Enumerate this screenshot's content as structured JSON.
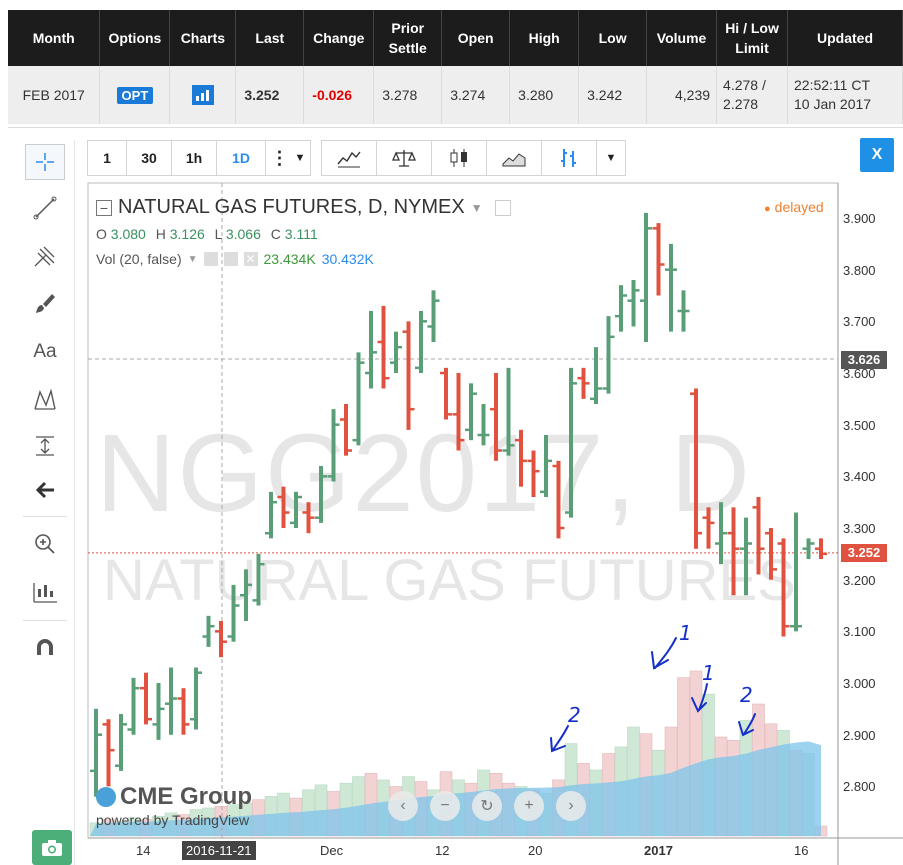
{
  "quote": {
    "headers": [
      "Month",
      "Options",
      "Charts",
      "Last",
      "Change",
      "Prior Settle",
      "Open",
      "High",
      "Low",
      "Volume",
      "Hi / Low Limit",
      "Updated"
    ],
    "month": "FEB 2017",
    "options_label": "OPT",
    "last": "3.252",
    "change": "-0.026",
    "prior_settle": "3.278",
    "open": "3.274",
    "high": "3.280",
    "low": "3.242",
    "volume": "4,239",
    "limit_hi": "4.278 /",
    "limit_lo": "2.278",
    "updated_time": "22:52:11 CT",
    "updated_date": "10 Jan 2017"
  },
  "toolbar": {
    "intervals": [
      "1",
      "30",
      "1h",
      "1D"
    ],
    "selected_interval": "1D",
    "close_label": "X"
  },
  "chart": {
    "title": "NATURAL GAS FUTURES, D, NYMEX",
    "ohlc": {
      "o_label": "O",
      "o": "3.080",
      "h_label": "H",
      "h": "3.126",
      "l_label": "L",
      "l": "3.066",
      "c_label": "C",
      "c": "3.111"
    },
    "vol_label": "Vol (20, false)",
    "vol_a": "23.434K",
    "vol_b": "30.432K",
    "delayed": "delayed",
    "watermark_symbol": "NGG2017, D",
    "watermark_name": "NATURAL GAS FUTURES",
    "brand": "CME Group",
    "powered_by": "powered by TradingView",
    "crosshair_price": "3.626",
    "last_price": "3.252",
    "colors": {
      "up": "#5a9e78",
      "down": "#e0523f",
      "vol_up": "#cfe8d6",
      "vol_down": "#f2d2d2",
      "vol_ma": "#7ec4ea",
      "accent": "#2a8cf0"
    },
    "price_ticks": [
      "3.900",
      "3.800",
      "3.700",
      "3.600",
      "3.500",
      "3.400",
      "3.300",
      "3.200",
      "3.100",
      "3.000",
      "2.900",
      "2.800"
    ],
    "time_ticks": [
      "14",
      "2016-11-21",
      "Dec",
      "12",
      "20",
      "2017",
      "16"
    ],
    "annotations": [
      "1",
      "1",
      "2",
      "2"
    ]
  },
  "chart_data": {
    "type": "bar",
    "title": "NATURAL GAS FUTURES, D, NYMEX",
    "y_range": [
      2.7,
      3.94
    ],
    "bars": [
      {
        "o": 2.83,
        "h": 2.95,
        "l": 2.78,
        "c": 2.9
      },
      {
        "o": 2.92,
        "h": 2.93,
        "l": 2.8,
        "c": 2.87
      },
      {
        "o": 2.84,
        "h": 2.94,
        "l": 2.83,
        "c": 2.92
      },
      {
        "o": 2.91,
        "h": 3.01,
        "l": 2.9,
        "c": 2.99
      },
      {
        "o": 2.99,
        "h": 3.02,
        "l": 2.92,
        "c": 2.93
      },
      {
        "o": 2.92,
        "h": 3.0,
        "l": 2.89,
        "c": 2.95
      },
      {
        "o": 2.96,
        "h": 3.03,
        "l": 2.9,
        "c": 2.97
      },
      {
        "o": 2.97,
        "h": 2.99,
        "l": 2.9,
        "c": 2.92
      },
      {
        "o": 2.93,
        "h": 3.03,
        "l": 2.91,
        "c": 3.02
      },
      {
        "o": 3.09,
        "h": 3.13,
        "l": 3.07,
        "c": 3.11
      },
      {
        "o": 3.1,
        "h": 3.12,
        "l": 3.05,
        "c": 3.08
      },
      {
        "o": 3.09,
        "h": 3.19,
        "l": 3.08,
        "c": 3.15
      },
      {
        "o": 3.17,
        "h": 3.22,
        "l": 3.12,
        "c": 3.19
      },
      {
        "o": 3.16,
        "h": 3.25,
        "l": 3.15,
        "c": 3.23
      },
      {
        "o": 3.29,
        "h": 3.37,
        "l": 3.28,
        "c": 3.35
      },
      {
        "o": 3.36,
        "h": 3.38,
        "l": 3.3,
        "c": 3.33
      },
      {
        "o": 3.31,
        "h": 3.37,
        "l": 3.3,
        "c": 3.36
      },
      {
        "o": 3.33,
        "h": 3.35,
        "l": 3.29,
        "c": 3.32
      },
      {
        "o": 3.32,
        "h": 3.42,
        "l": 3.31,
        "c": 3.4
      },
      {
        "o": 3.4,
        "h": 3.53,
        "l": 3.39,
        "c": 3.5
      },
      {
        "o": 3.51,
        "h": 3.54,
        "l": 3.44,
        "c": 3.45
      },
      {
        "o": 3.47,
        "h": 3.64,
        "l": 3.46,
        "c": 3.62
      },
      {
        "o": 3.6,
        "h": 3.72,
        "l": 3.57,
        "c": 3.64
      },
      {
        "o": 3.66,
        "h": 3.73,
        "l": 3.57,
        "c": 3.59
      },
      {
        "o": 3.62,
        "h": 3.68,
        "l": 3.6,
        "c": 3.65
      },
      {
        "o": 3.68,
        "h": 3.7,
        "l": 3.49,
        "c": 3.53
      },
      {
        "o": 3.61,
        "h": 3.72,
        "l": 3.6,
        "c": 3.7
      },
      {
        "o": 3.69,
        "h": 3.76,
        "l": 3.66,
        "c": 3.74
      },
      {
        "o": 3.6,
        "h": 3.61,
        "l": 3.51,
        "c": 3.52
      },
      {
        "o": 3.52,
        "h": 3.6,
        "l": 3.45,
        "c": 3.47
      },
      {
        "o": 3.49,
        "h": 3.58,
        "l": 3.47,
        "c": 3.56
      },
      {
        "o": 3.48,
        "h": 3.54,
        "l": 3.46,
        "c": 3.48
      },
      {
        "o": 3.53,
        "h": 3.6,
        "l": 3.43,
        "c": 3.45
      },
      {
        "o": 3.45,
        "h": 3.61,
        "l": 3.44,
        "c": 3.46
      },
      {
        "o": 3.47,
        "h": 3.49,
        "l": 3.38,
        "c": 3.43
      },
      {
        "o": 3.43,
        "h": 3.45,
        "l": 3.36,
        "c": 3.41
      },
      {
        "o": 3.37,
        "h": 3.48,
        "l": 3.36,
        "c": 3.43
      },
      {
        "o": 3.42,
        "h": 3.43,
        "l": 3.28,
        "c": 3.3
      },
      {
        "o": 3.33,
        "h": 3.61,
        "l": 3.32,
        "c": 3.58
      },
      {
        "o": 3.59,
        "h": 3.61,
        "l": 3.55,
        "c": 3.58
      },
      {
        "o": 3.55,
        "h": 3.65,
        "l": 3.54,
        "c": 3.57
      },
      {
        "o": 3.57,
        "h": 3.71,
        "l": 3.56,
        "c": 3.67
      },
      {
        "o": 3.71,
        "h": 3.77,
        "l": 3.68,
        "c": 3.75
      },
      {
        "o": 3.74,
        "h": 3.78,
        "l": 3.69,
        "c": 3.76
      },
      {
        "o": 3.74,
        "h": 3.91,
        "l": 3.66,
        "c": 3.88
      },
      {
        "o": 3.88,
        "h": 3.89,
        "l": 3.75,
        "c": 3.81
      },
      {
        "o": 3.8,
        "h": 3.85,
        "l": 3.68,
        "c": 3.8
      },
      {
        "o": 3.72,
        "h": 3.76,
        "l": 3.68,
        "c": 3.72
      },
      {
        "o": 3.56,
        "h": 3.57,
        "l": 3.26,
        "c": 3.29
      },
      {
        "o": 3.32,
        "h": 3.34,
        "l": 3.26,
        "c": 3.31
      },
      {
        "o": 3.27,
        "h": 3.35,
        "l": 3.23,
        "c": 3.29
      },
      {
        "o": 3.29,
        "h": 3.34,
        "l": 3.17,
        "c": 3.26
      },
      {
        "o": 3.26,
        "h": 3.32,
        "l": 3.17,
        "c": 3.27
      },
      {
        "o": 3.34,
        "h": 3.36,
        "l": 3.21,
        "c": 3.26
      },
      {
        "o": 3.29,
        "h": 3.3,
        "l": 3.2,
        "c": 3.22
      },
      {
        "o": 3.27,
        "h": 3.28,
        "l": 3.09,
        "c": 3.11
      },
      {
        "o": 3.11,
        "h": 3.33,
        "l": 3.1,
        "c": 3.11
      },
      {
        "o": 3.26,
        "h": 3.28,
        "l": 3.24,
        "c": 3.27
      },
      {
        "o": 3.26,
        "h": 3.28,
        "l": 3.24,
        "c": 3.25
      }
    ],
    "volume": [
      {
        "v": 4.0,
        "up": true
      },
      {
        "v": 5.0,
        "up": false
      },
      {
        "v": 4.5,
        "up": true
      },
      {
        "v": 5.5,
        "up": true
      },
      {
        "v": 5.0,
        "up": false
      },
      {
        "v": 6.0,
        "up": true
      },
      {
        "v": 7.0,
        "up": true
      },
      {
        "v": 6.5,
        "up": false
      },
      {
        "v": 8.0,
        "up": true
      },
      {
        "v": 8.5,
        "up": true
      },
      {
        "v": 9.0,
        "up": false
      },
      {
        "v": 9.5,
        "up": true
      },
      {
        "v": 10.0,
        "up": true
      },
      {
        "v": 11.0,
        "up": false
      },
      {
        "v": 12.0,
        "up": true
      },
      {
        "v": 13.0,
        "up": true
      },
      {
        "v": 11.5,
        "up": false
      },
      {
        "v": 14.0,
        "up": true
      },
      {
        "v": 15.5,
        "up": true
      },
      {
        "v": 13.5,
        "up": false
      },
      {
        "v": 16.0,
        "up": true
      },
      {
        "v": 18.0,
        "up": true
      },
      {
        "v": 19.0,
        "up": false
      },
      {
        "v": 17.0,
        "up": true
      },
      {
        "v": 15.0,
        "up": false
      },
      {
        "v": 18.0,
        "up": true
      },
      {
        "v": 16.5,
        "up": false
      },
      {
        "v": 14.0,
        "up": true
      },
      {
        "v": 19.5,
        "up": false
      },
      {
        "v": 17.0,
        "up": true
      },
      {
        "v": 16.0,
        "up": false
      },
      {
        "v": 20.0,
        "up": true
      },
      {
        "v": 19.0,
        "up": false
      },
      {
        "v": 16.0,
        "up": false
      },
      {
        "v": 15.0,
        "up": true
      },
      {
        "v": 14.0,
        "up": false
      },
      {
        "v": 13.0,
        "up": true
      },
      {
        "v": 17.0,
        "up": false
      },
      {
        "v": 28.0,
        "up": true
      },
      {
        "v": 22.0,
        "up": false
      },
      {
        "v": 20.0,
        "up": true
      },
      {
        "v": 25.0,
        "up": false
      },
      {
        "v": 27.0,
        "up": true
      },
      {
        "v": 33.0,
        "up": true
      },
      {
        "v": 31.0,
        "up": false
      },
      {
        "v": 26.0,
        "up": true
      },
      {
        "v": 33.0,
        "up": false
      },
      {
        "v": 48.0,
        "up": false
      },
      {
        "v": 50.0,
        "up": false
      },
      {
        "v": 43.0,
        "up": true
      },
      {
        "v": 30.0,
        "up": false
      },
      {
        "v": 29.0,
        "up": false
      },
      {
        "v": 35.0,
        "up": true
      },
      {
        "v": 40.0,
        "up": false
      },
      {
        "v": 34.0,
        "up": false
      },
      {
        "v": 32.0,
        "up": true
      },
      {
        "v": 26.0,
        "up": false
      },
      {
        "v": 25.0,
        "up": true
      },
      {
        "v": 3.0,
        "up": false
      }
    ]
  }
}
